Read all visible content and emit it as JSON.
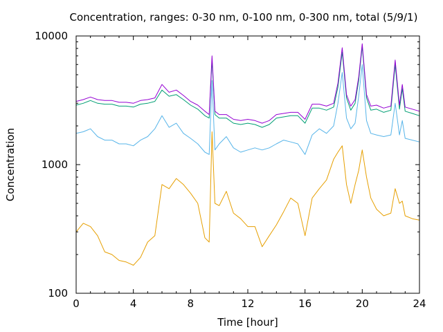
{
  "chart_data": {
    "type": "line",
    "title": "Concentration, ranges: 0-30 nm, 0-100 nm, 0-300 nm, total (5/9/1)",
    "xlabel": "Time [hour]",
    "ylabel": "Concentration",
    "xlim": [
      0,
      24
    ],
    "ylim": [
      100,
      10000
    ],
    "yscale": "log",
    "grid": false,
    "legend": "none",
    "x_ticks": [
      0,
      4,
      8,
      12,
      16,
      20,
      24
    ],
    "x_tick_labels": [
      "0",
      "4",
      "8",
      "12",
      "16",
      "20",
      "24"
    ],
    "y_ticks": [
      100,
      1000,
      10000
    ],
    "y_tick_labels": [
      "100",
      "1000",
      "10000"
    ],
    "x": [
      0,
      0.5,
      1,
      1.5,
      2,
      2.5,
      3,
      3.5,
      4,
      4.5,
      5,
      5.5,
      6,
      6.5,
      7,
      7.5,
      8,
      8.5,
      9,
      9.3,
      9.5,
      9.7,
      10,
      10.5,
      11,
      11.5,
      12,
      12.5,
      13,
      13.5,
      14,
      14.5,
      15,
      15.5,
      16,
      16.5,
      17,
      17.5,
      18,
      18.3,
      18.6,
      18.9,
      19.2,
      19.5,
      19.75,
      20,
      20.3,
      20.6,
      21,
      21.5,
      22,
      22.3,
      22.6,
      22.8,
      23,
      23.5,
      24
    ],
    "series": [
      {
        "color": "#e69f00",
        "values": [
          300,
          350,
          330,
          280,
          210,
          200,
          180,
          175,
          165,
          190,
          250,
          280,
          700,
          650,
          780,
          700,
          600,
          500,
          270,
          250,
          1800,
          500,
          480,
          620,
          420,
          380,
          330,
          330,
          230,
          280,
          340,
          430,
          550,
          500,
          280,
          550,
          650,
          760,
          1100,
          1250,
          1400,
          700,
          500,
          700,
          900,
          1300,
          800,
          550,
          450,
          400,
          420,
          650,
          500,
          520,
          400,
          380,
          370
        ]
      },
      {
        "color": "#56b4e9",
        "values": [
          1750,
          1800,
          1900,
          1650,
          1550,
          1550,
          1450,
          1450,
          1400,
          1550,
          1650,
          1900,
          2400,
          1950,
          2100,
          1750,
          1600,
          1450,
          1250,
          1200,
          4500,
          1300,
          1450,
          1650,
          1350,
          1250,
          1300,
          1350,
          1300,
          1350,
          1450,
          1550,
          1500,
          1450,
          1200,
          1700,
          1900,
          1750,
          2000,
          3000,
          5200,
          2300,
          1900,
          2100,
          3400,
          6000,
          2200,
          1750,
          1700,
          1650,
          1700,
          3000,
          1700,
          2200,
          1600,
          1550,
          1500
        ]
      },
      {
        "color": "#009e73",
        "values": [
          2900,
          3000,
          3150,
          3000,
          2950,
          2950,
          2850,
          2850,
          2800,
          2950,
          3000,
          3100,
          3800,
          3400,
          3500,
          3200,
          2900,
          2700,
          2400,
          2300,
          6500,
          2450,
          2300,
          2300,
          2100,
          2050,
          2100,
          2050,
          1950,
          2050,
          2300,
          2350,
          2400,
          2400,
          2100,
          2750,
          2750,
          2650,
          2800,
          4000,
          7500,
          3300,
          2650,
          3000,
          4500,
          8300,
          3300,
          2650,
          2700,
          2550,
          2650,
          6000,
          2700,
          3900,
          2600,
          2500,
          2400
        ]
      },
      {
        "color": "#9400d3",
        "values": [
          3100,
          3200,
          3350,
          3200,
          3150,
          3150,
          3050,
          3050,
          3000,
          3150,
          3200,
          3300,
          4200,
          3650,
          3800,
          3450,
          3100,
          2900,
          2600,
          2450,
          7000,
          2600,
          2450,
          2450,
          2250,
          2200,
          2250,
          2200,
          2100,
          2200,
          2450,
          2500,
          2550,
          2550,
          2250,
          2950,
          2950,
          2850,
          3000,
          4300,
          8100,
          3500,
          2850,
          3200,
          4800,
          8700,
          3500,
          2850,
          2900,
          2750,
          2850,
          6500,
          2900,
          4200,
          2800,
          2700,
          2600
        ]
      }
    ]
  }
}
